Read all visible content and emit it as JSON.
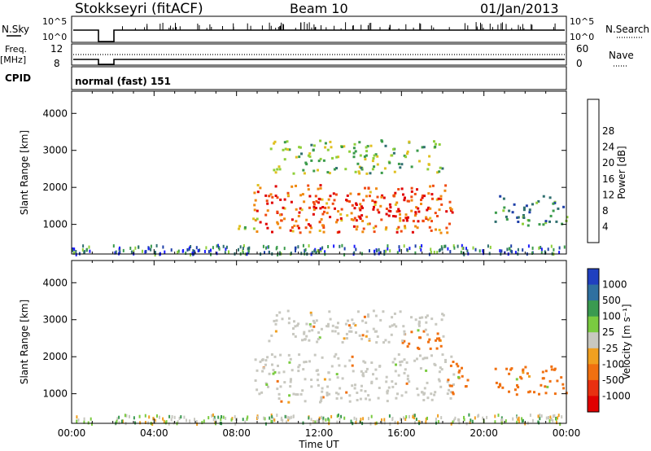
{
  "header": {
    "station": "Stokkseyri (fitACF)",
    "beam": "Beam 10",
    "date": "01/Jan/2013"
  },
  "strips": {
    "nsky_label": "N.Sky",
    "nsky_ticks": [
      "10^5",
      "10^0"
    ],
    "nsearch_label": "N.Search",
    "nsearch_ticks": [
      "10^5",
      "10^0"
    ],
    "freq_label_1": "Freq.",
    "freq_label_2": "[MHz]",
    "freq_ticks": [
      "12",
      "8"
    ],
    "nave_label": "Nave",
    "nave_ticks": [
      "60",
      "0"
    ],
    "cpid_label": "CPID",
    "cpid_value": "normal (fast) 151"
  },
  "colors": {
    "power": [
      "#1c1cff",
      "#1e3fa8",
      "#2f6f6f",
      "#3a9b4a",
      "#8fcf3a",
      "#e0c020",
      "#f08a10",
      "#f04a10",
      "#e00000"
    ],
    "velocity": [
      "#2040c0",
      "#2f70a0",
      "#3a9a50",
      "#7acb40",
      "#c8c8c0",
      "#f0a020",
      "#f07010",
      "#e83010",
      "#e00000"
    ],
    "ground": "#c8c8c0"
  },
  "chart_data": [
    {
      "type": "heatmap",
      "name": "power",
      "ylabel": "Slant Range [km]",
      "xlabel": "Time UT",
      "xlim": [
        "00:00",
        "00:00"
      ],
      "x_ticks": [
        "00:00",
        "04:00",
        "08:00",
        "12:00",
        "16:00",
        "20:00",
        "00:00"
      ],
      "ylim": [
        200,
        4600
      ],
      "y_ticks": [
        1000,
        2000,
        3000,
        4000
      ],
      "colorbar_label": "Power [dB]",
      "colorbar_ticks": [
        "4",
        "8",
        "12",
        "16",
        "20",
        "24",
        "28"
      ],
      "regions": [
        {
          "t0": 1.0,
          "t1": 2.0,
          "r0": 200,
          "r1": 4600,
          "level": -1,
          "note": "data gap"
        },
        {
          "t0": 8.8,
          "t1": 18.5,
          "r0": 800,
          "r1": 2100,
          "level": 7
        },
        {
          "t0": 11.5,
          "t1": 17.5,
          "r0": 1100,
          "r1": 1850,
          "level": 8
        },
        {
          "t0": 7.8,
          "t1": 9.0,
          "r0": 900,
          "r1": 1300,
          "level": 5
        },
        {
          "t0": 20.5,
          "t1": 24.0,
          "r0": 1000,
          "r1": 1800,
          "level": 3
        },
        {
          "t0": 9.5,
          "t1": 18.0,
          "r0": 2400,
          "r1": 3300,
          "level": 4
        }
      ]
    },
    {
      "type": "heatmap",
      "name": "velocity",
      "ylabel": "Slant Range [km]",
      "xlabel": "Time UT",
      "xlim": [
        "00:00",
        "00:00"
      ],
      "x_ticks": [
        "00:00",
        "04:00",
        "08:00",
        "12:00",
        "16:00",
        "20:00",
        "00:00"
      ],
      "ylim": [
        200,
        4600
      ],
      "y_ticks": [
        1000,
        2000,
        3000,
        4000
      ],
      "colorbar_label": "Velocity [m s⁻¹]",
      "colorbar_ticks": [
        "1000",
        "500",
        "100",
        "25",
        "-25",
        "-100",
        "-500",
        "-1000"
      ],
      "regions": [
        {
          "t0": 8.8,
          "t1": 18.5,
          "r0": 800,
          "r1": 2100,
          "level": 4
        },
        {
          "t0": 18.0,
          "t1": 19.2,
          "r0": 1000,
          "r1": 1900,
          "level": 6
        },
        {
          "t0": 20.5,
          "t1": 24.0,
          "r0": 1000,
          "r1": 1800,
          "level": 6
        },
        {
          "t0": 16.0,
          "t1": 18.0,
          "r0": 2200,
          "r1": 2800,
          "level": 6
        },
        {
          "t0": 9.5,
          "t1": 18.0,
          "r0": 2400,
          "r1": 3300,
          "level": 4
        }
      ]
    }
  ],
  "x_axis_label": "Time UT"
}
